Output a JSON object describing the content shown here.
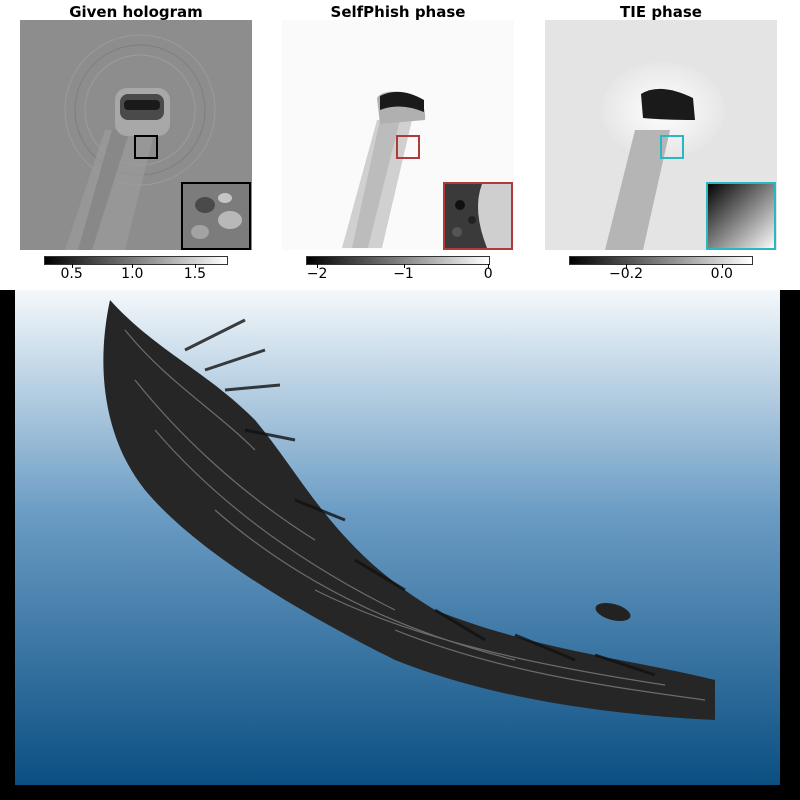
{
  "panels": [
    {
      "title": "Given hologram",
      "colorbar": {
        "ticks": [
          "0.5",
          "1.0",
          "1.5"
        ],
        "tick_fraction": [
          0.15,
          0.48,
          0.82
        ],
        "gradient": [
          "#000000",
          "#ffffff"
        ]
      },
      "inset_border_color": "#000000"
    },
    {
      "title": "SelfPhish phase",
      "colorbar": {
        "ticks": [
          "−2",
          "−1",
          "0"
        ],
        "tick_fraction": [
          0.06,
          0.53,
          0.99
        ],
        "gradient": [
          "#000000",
          "#ffffff"
        ]
      },
      "inset_border_color": "#b03a3a"
    },
    {
      "title": "TIE phase",
      "colorbar": {
        "ticks": [
          "−0.2",
          "0.0"
        ],
        "tick_fraction": [
          0.31,
          0.83
        ],
        "gradient": [
          "#000000",
          "#ffffff"
        ]
      },
      "inset_border_color": "#2ab8c0"
    }
  ],
  "render": {
    "background_top": "#f4f8fb",
    "background_bottom": "#0b4f82",
    "specimen_color": "#1c1c1c"
  }
}
